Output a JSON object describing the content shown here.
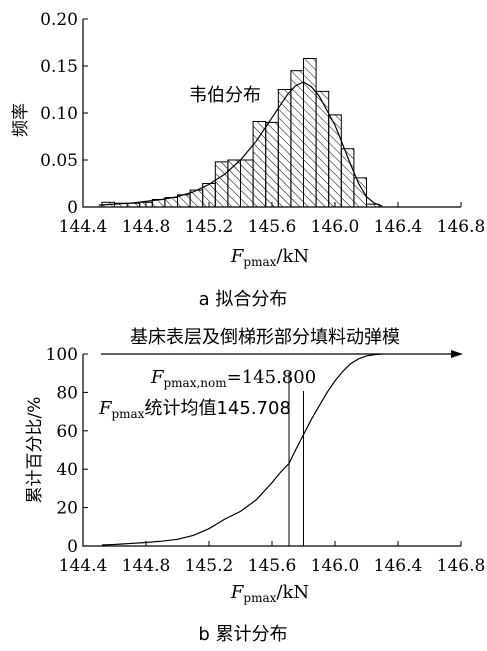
{
  "chart_data": [
    {
      "type": "bar",
      "panel_label": "a 拟合分布",
      "ylabel": "频率",
      "xlabel_var": "F",
      "xlabel_sub": "pmax",
      "xlabel_unit": "/kN",
      "xlim": [
        144.4,
        146.8
      ],
      "ylim": [
        0,
        0.2
      ],
      "xticks": [
        "144.4",
        "144.8",
        "145.2",
        "145.6",
        "146.0",
        "146.4",
        "146.8"
      ],
      "yticks": [
        "0",
        "0.05",
        "0.10",
        "0.15",
        "0.20"
      ],
      "bin_width": 0.08,
      "bins": [
        {
          "x0": 144.52,
          "value": 0.005
        },
        {
          "x0": 144.6,
          "value": 0.004
        },
        {
          "x0": 144.68,
          "value": 0.004
        },
        {
          "x0": 144.76,
          "value": 0.005
        },
        {
          "x0": 144.84,
          "value": 0.008
        },
        {
          "x0": 144.92,
          "value": 0.01
        },
        {
          "x0": 145.0,
          "value": 0.013
        },
        {
          "x0": 145.08,
          "value": 0.018
        },
        {
          "x0": 145.16,
          "value": 0.025
        },
        {
          "x0": 145.24,
          "value": 0.048
        },
        {
          "x0": 145.32,
          "value": 0.05
        },
        {
          "x0": 145.4,
          "value": 0.05
        },
        {
          "x0": 145.48,
          "value": 0.091
        },
        {
          "x0": 145.56,
          "value": 0.09
        },
        {
          "x0": 145.64,
          "value": 0.125
        },
        {
          "x0": 145.72,
          "value": 0.145
        },
        {
          "x0": 145.8,
          "value": 0.158
        },
        {
          "x0": 145.88,
          "value": 0.123
        },
        {
          "x0": 145.96,
          "value": 0.098
        },
        {
          "x0": 146.04,
          "value": 0.062
        },
        {
          "x0": 146.12,
          "value": 0.031
        },
        {
          "x0": 146.2,
          "value": 0.003
        }
      ],
      "fit_curve": {
        "name": "韦伯分布",
        "x": [
          144.5,
          144.7,
          144.9,
          145.0,
          145.1,
          145.2,
          145.3,
          145.4,
          145.5,
          145.6,
          145.7,
          145.75,
          145.8,
          145.85,
          145.9,
          146.0,
          146.05,
          146.1,
          146.15,
          146.2,
          146.25,
          146.3
        ],
        "y": [
          0.002,
          0.004,
          0.008,
          0.011,
          0.016,
          0.024,
          0.035,
          0.05,
          0.07,
          0.095,
          0.12,
          0.129,
          0.133,
          0.128,
          0.118,
          0.087,
          0.066,
          0.045,
          0.025,
          0.011,
          0.004,
          0.001
        ]
      }
    },
    {
      "type": "line",
      "panel_label": "b 累计分布",
      "ylabel": "累计百分比/%",
      "xlabel_var": "F",
      "xlabel_sub": "pmax",
      "xlabel_unit": "/kN",
      "xlim": [
        144.4,
        146.8
      ],
      "ylim": [
        0,
        100
      ],
      "xticks": [
        "144.4",
        "144.8",
        "145.2",
        "145.6",
        "146.0",
        "146.4",
        "146.8"
      ],
      "yticks": [
        "0",
        "20",
        "40",
        "60",
        "80",
        "100"
      ],
      "header_text": "基床表层及倒梯形部分填料动弹模",
      "series": [
        {
          "x": [
            144.52,
            144.6,
            144.8,
            144.9,
            145.0,
            145.1,
            145.2,
            145.3,
            145.4,
            145.5,
            145.6,
            145.65,
            145.708,
            145.75,
            145.8,
            145.85,
            145.9,
            145.95,
            146.0,
            146.05,
            146.1,
            146.15,
            146.2,
            146.25,
            146.3
          ],
          "y": [
            0.5,
            0.8,
            1.8,
            2.5,
            3.5,
            5.5,
            9,
            14,
            18,
            24,
            33,
            38,
            43,
            50,
            58,
            66,
            73,
            80,
            86,
            91,
            95,
            97.5,
            99,
            99.7,
            100
          ]
        }
      ],
      "reference_lines": [
        {
          "x": 145.708,
          "label_var": "F",
          "label_sub": "pmax",
          "label_text": "统计均值145.708"
        },
        {
          "x": 145.8,
          "label_var": "F",
          "label_sub": "pmax,nom",
          "label_text": "=145.800"
        }
      ]
    }
  ]
}
